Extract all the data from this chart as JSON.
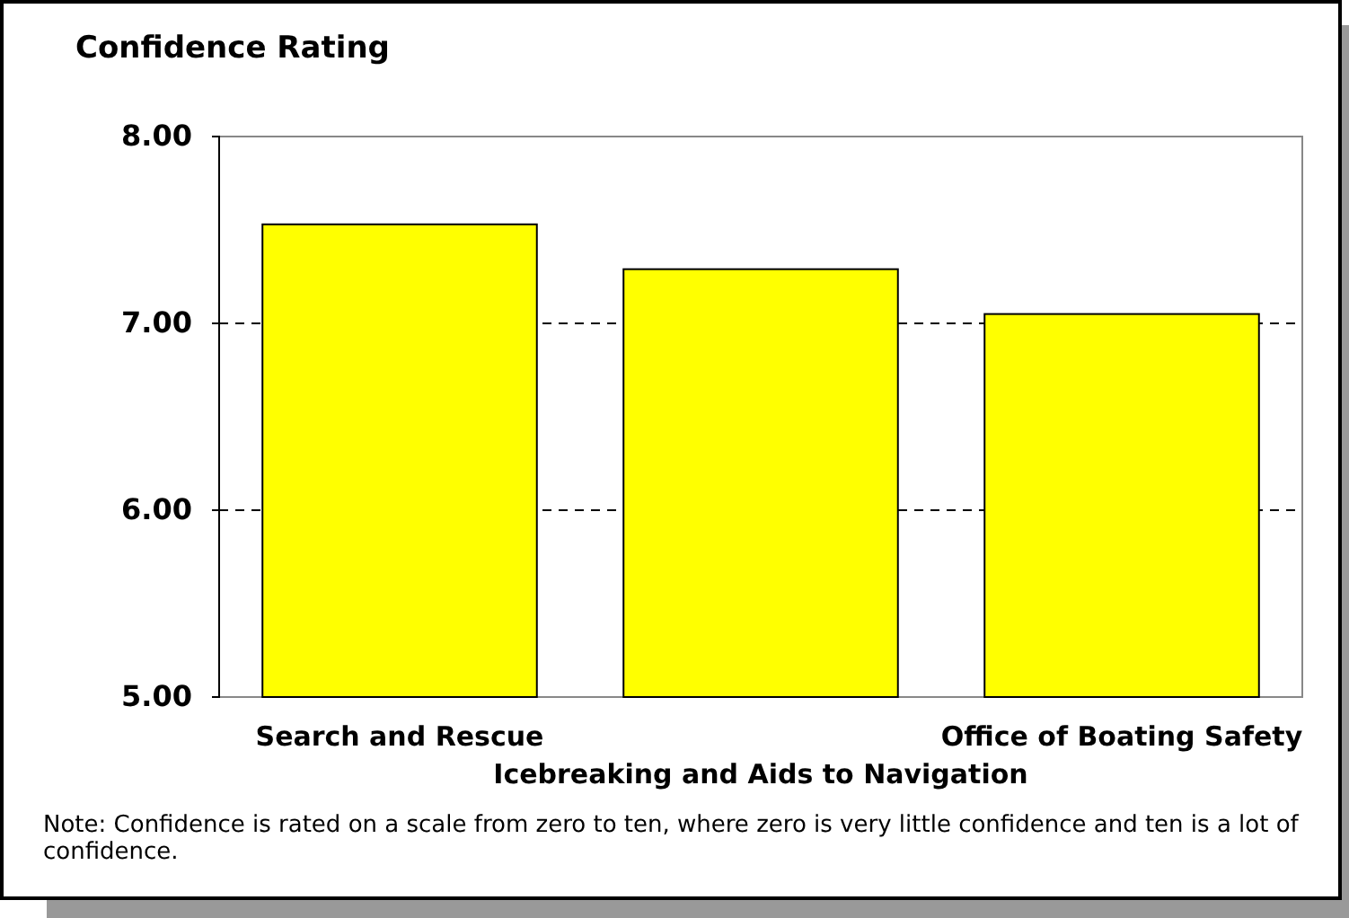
{
  "chart_data": {
    "type": "bar",
    "title": "Confidence Rating",
    "categories": [
      "Search and Rescue",
      "Icebreaking and Aids to Navigation",
      "Office of Boating Safety"
    ],
    "values": [
      7.53,
      7.29,
      7.05
    ],
    "color": "#ffff00",
    "ylim": [
      5,
      8
    ],
    "yticks": [
      {
        "value": 5,
        "label": "5.00"
      },
      {
        "value": 6,
        "label": "6.00"
      },
      {
        "value": 7,
        "label": "7.00"
      },
      {
        "value": 8,
        "label": "8.00"
      }
    ],
    "grid": "y",
    "annotations": [
      "Note: Confidence is rated on a scale from zero to ten, where zero is very little confidence and ten is a lot of confidence."
    ]
  }
}
